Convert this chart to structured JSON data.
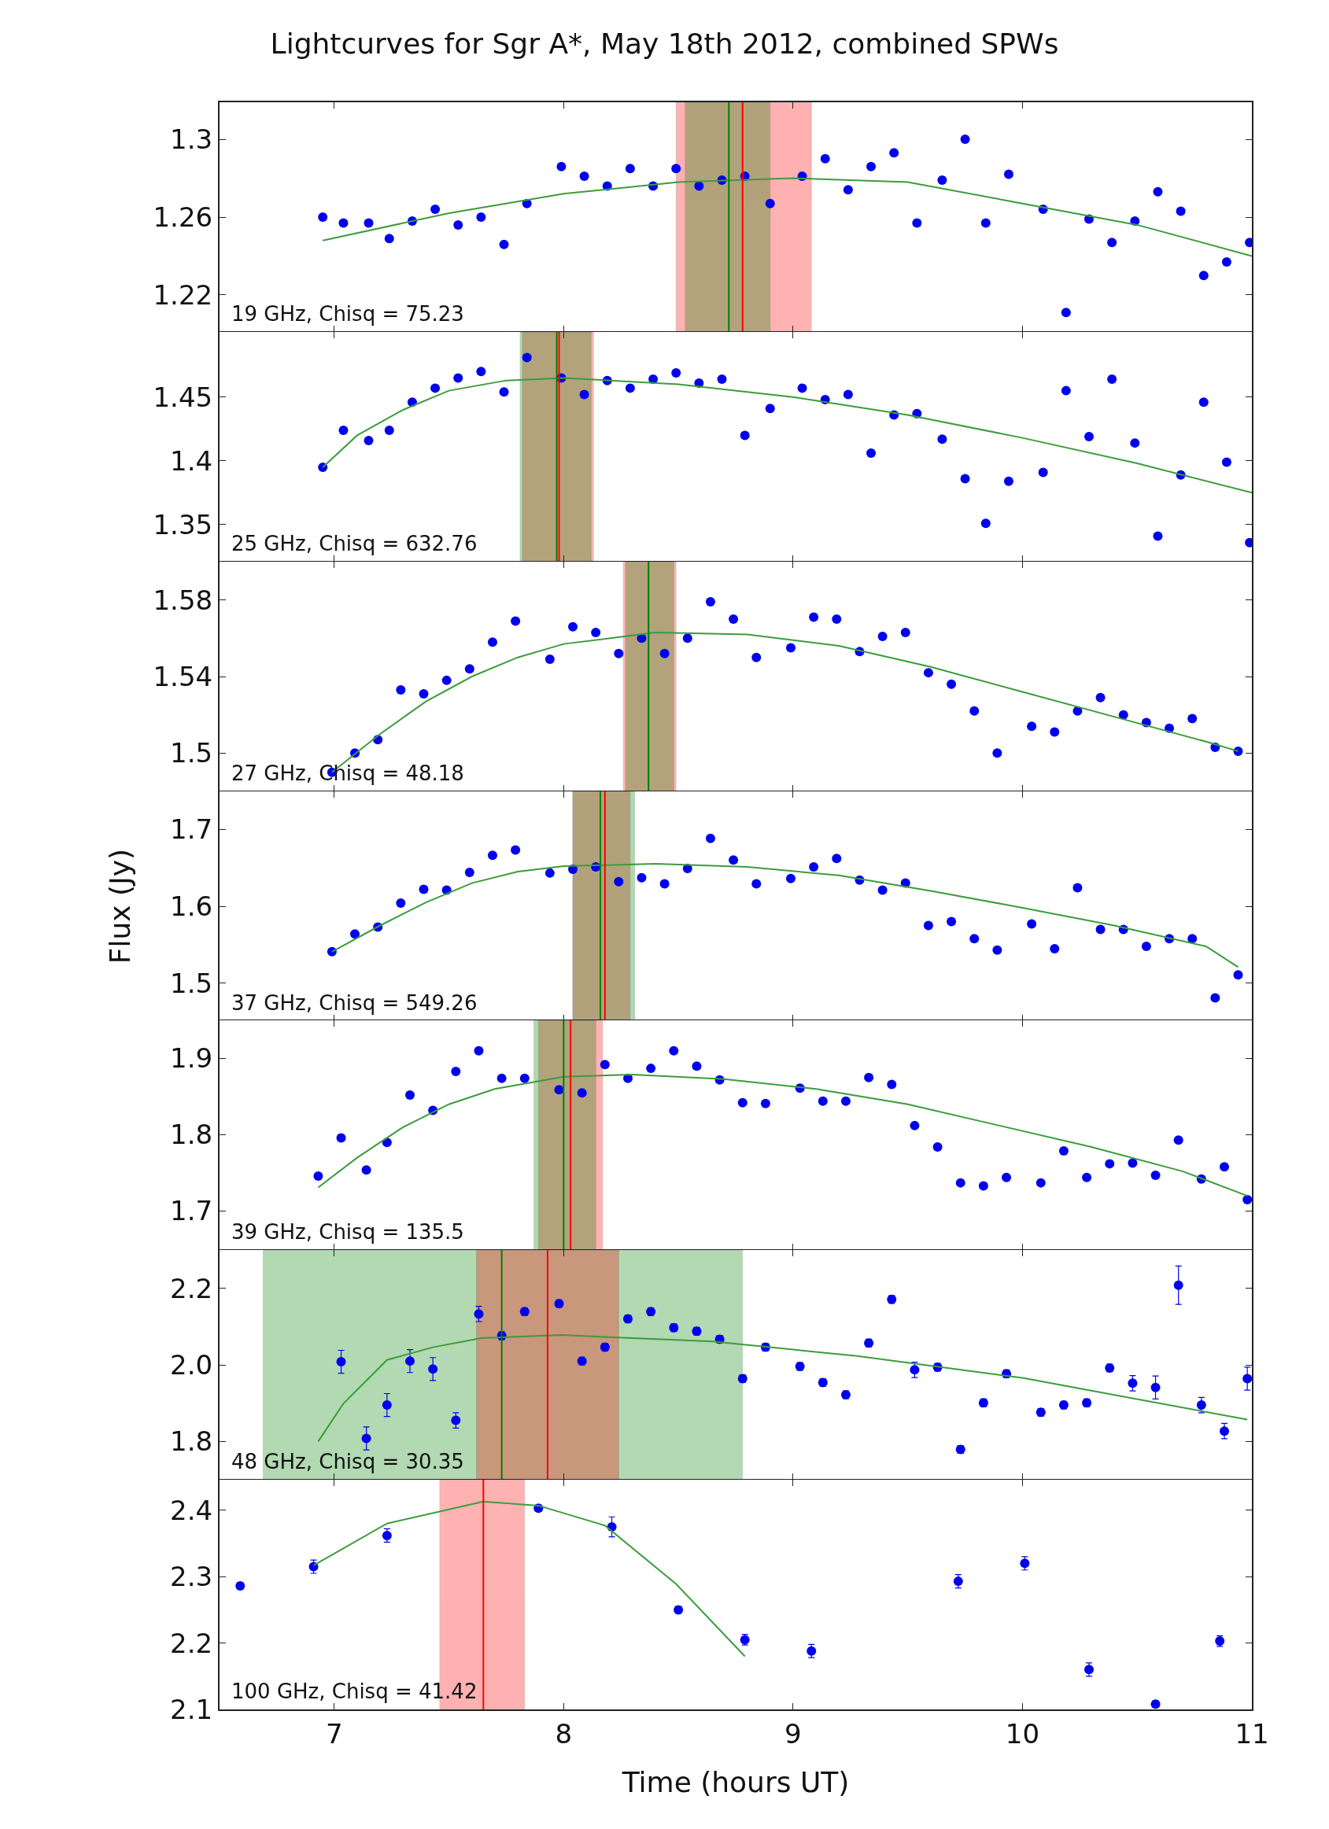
{
  "chart_data": [
    {
      "type": "scatter",
      "title": "Lightcurves for Sgr A*, May 18th 2012, combined SPWs",
      "tick_labels": "y",
      "xlim": [
        6.5,
        11
      ],
      "xticks": [
        7,
        8,
        9,
        10,
        11
      ],
      "ylim": [
        1.201,
        1.319
      ],
      "yticks": [
        1.22,
        1.26,
        1.3
      ],
      "annotations": [
        "19 GHz, Chisq = 75.23"
      ],
      "bands": [
        {
          "axis": "x",
          "from": 8.49,
          "to": 9.08,
          "color": "#ff0000"
        },
        {
          "axis": "x",
          "from": 8.53,
          "to": 8.9,
          "color": "#008000"
        }
      ],
      "ref_lines": [
        {
          "axis": "x",
          "value": 8.72,
          "color": "#008000"
        },
        {
          "axis": "x",
          "value": 8.78,
          "color": "#ff0000"
        }
      ],
      "series": [
        {
          "type": "scatter",
          "color": "#0000ee",
          "x": [
            6.95,
            7.04,
            7.15,
            7.24,
            7.34,
            7.44,
            7.54,
            7.64,
            7.74,
            7.84,
            7.99,
            8.09,
            8.19,
            8.29,
            8.39,
            8.49,
            8.59,
            8.69,
            8.79,
            8.9,
            9.04,
            9.14,
            9.24,
            9.34,
            9.44,
            9.54,
            9.65,
            9.75,
            9.84,
            9.94,
            10.09,
            10.19,
            10.29,
            10.39,
            10.49,
            10.59,
            10.69,
            10.79,
            10.89,
            10.99
          ],
          "values": [
            1.26,
            1.257,
            1.257,
            1.249,
            1.258,
            1.264,
            1.256,
            1.26,
            1.246,
            1.267,
            1.286,
            1.281,
            1.276,
            1.285,
            1.276,
            1.285,
            1.276,
            1.279,
            1.281,
            1.267,
            1.281,
            1.29,
            1.274,
            1.286,
            1.293,
            1.257,
            1.279,
            1.3,
            1.257,
            1.282,
            1.264,
            1.211,
            1.259,
            1.247,
            1.258,
            1.273,
            1.263,
            1.23,
            1.237,
            1.247
          ]
        },
        {
          "type": "line",
          "color": "#3c9c3c",
          "x": [
            6.95,
            7.5,
            8,
            8.5,
            9,
            9.5,
            10,
            10.5,
            11
          ],
          "values": [
            1.248,
            1.262,
            1.272,
            1.278,
            1.28,
            1.278,
            1.267,
            1.256,
            1.24
          ]
        }
      ]
    },
    {
      "type": "scatter",
      "tick_labels": "y",
      "xlim": [
        6.5,
        11
      ],
      "xticks": [
        7,
        8,
        9,
        10,
        11
      ],
      "ylim": [
        1.321,
        1.501
      ],
      "yticks": [
        1.35,
        1.4,
        1.45
      ],
      "annotations": [
        "25 GHz, Chisq = 632.76"
      ],
      "bands": [
        {
          "axis": "x",
          "from": 7.82,
          "to": 8.13,
          "color": "#ff0000"
        },
        {
          "axis": "x",
          "from": 7.81,
          "to": 8.12,
          "color": "#008000"
        }
      ],
      "ref_lines": [
        {
          "axis": "x",
          "value": 7.97,
          "color": "#008000"
        },
        {
          "axis": "x",
          "value": 7.98,
          "color": "#ff0000"
        }
      ],
      "series": [
        {
          "type": "scatter",
          "color": "#0000ee",
          "x": [
            6.95,
            7.04,
            7.15,
            7.24,
            7.34,
            7.44,
            7.54,
            7.64,
            7.74,
            7.84,
            7.99,
            8.09,
            8.19,
            8.29,
            8.39,
            8.49,
            8.59,
            8.69,
            8.79,
            8.9,
            9.04,
            9.14,
            9.24,
            9.34,
            9.44,
            9.54,
            9.65,
            9.75,
            9.84,
            9.94,
            10.09,
            10.19,
            10.29,
            10.39,
            10.49,
            10.59,
            10.69,
            10.79,
            10.89,
            10.99
          ],
          "values": [
            1.395,
            1.424,
            1.416,
            1.424,
            1.446,
            1.457,
            1.465,
            1.47,
            1.454,
            1.481,
            1.465,
            1.452,
            1.463,
            1.457,
            1.464,
            1.469,
            1.461,
            1.464,
            1.42,
            1.441,
            1.457,
            1.448,
            1.452,
            1.406,
            1.436,
            1.437,
            1.417,
            1.386,
            1.351,
            1.384,
            1.391,
            1.455,
            1.419,
            1.464,
            1.414,
            1.341,
            1.389,
            1.446,
            1.399,
            1.336
          ]
        },
        {
          "type": "line",
          "color": "#3c9c3c",
          "x": [
            6.95,
            7.1,
            7.3,
            7.5,
            7.75,
            8,
            8.5,
            9,
            9.5,
            10,
            10.5,
            11
          ],
          "values": [
            1.395,
            1.42,
            1.44,
            1.455,
            1.463,
            1.465,
            1.46,
            1.45,
            1.436,
            1.418,
            1.398,
            1.375
          ]
        }
      ]
    },
    {
      "type": "scatter",
      "tick_labels": "y",
      "xlim": [
        6.5,
        11
      ],
      "xticks": [
        7,
        8,
        9,
        10,
        11
      ],
      "ylim": [
        1.48,
        1.6
      ],
      "yticks": [
        1.5,
        1.54,
        1.58
      ],
      "annotations": [
        "27 GHz, Chisq = 48.18"
      ],
      "bands": [
        {
          "axis": "x",
          "from": 8.26,
          "to": 8.49,
          "color": "#ff0000"
        },
        {
          "axis": "x",
          "from": 8.27,
          "to": 8.48,
          "color": "#008000"
        }
      ],
      "ref_lines": [
        {
          "axis": "x",
          "value": 8.37,
          "color": "#008000"
        }
      ],
      "series": [
        {
          "type": "scatter",
          "color": "#0000ee",
          "x": [
            6.99,
            7.09,
            7.19,
            7.29,
            7.39,
            7.49,
            7.59,
            7.69,
            7.79,
            7.94,
            8.04,
            8.14,
            8.24,
            8.34,
            8.44,
            8.54,
            8.64,
            8.74,
            8.84,
            8.99,
            9.09,
            9.19,
            9.29,
            9.39,
            9.49,
            9.59,
            9.69,
            9.79,
            9.89,
            10.04,
            10.14,
            10.24,
            10.34,
            10.44,
            10.54,
            10.64,
            10.74,
            10.84,
            10.94
          ],
          "values": [
            1.49,
            1.5,
            1.507,
            1.533,
            1.531,
            1.538,
            1.544,
            1.558,
            1.569,
            1.549,
            1.566,
            1.563,
            1.552,
            1.56,
            1.552,
            1.56,
            1.579,
            1.57,
            1.55,
            1.555,
            1.571,
            1.57,
            1.553,
            1.561,
            1.563,
            1.542,
            1.536,
            1.522,
            1.5,
            1.514,
            1.511,
            1.522,
            1.529,
            1.52,
            1.516,
            1.513,
            1.518,
            1.503,
            1.501
          ]
        },
        {
          "type": "line",
          "color": "#3c9c3c",
          "x": [
            6.99,
            7.2,
            7.4,
            7.6,
            7.8,
            8,
            8.4,
            8.8,
            9.2,
            9.6,
            10,
            10.4,
            10.8,
            10.94
          ],
          "values": [
            1.49,
            1.51,
            1.527,
            1.54,
            1.55,
            1.557,
            1.563,
            1.562,
            1.556,
            1.545,
            1.532,
            1.519,
            1.506,
            1.501
          ]
        }
      ]
    },
    {
      "type": "scatter",
      "ylabel": "Flux (Jy)",
      "tick_labels": "y",
      "xlim": [
        6.5,
        11
      ],
      "xticks": [
        7,
        8,
        9,
        10,
        11
      ],
      "ylim": [
        1.451,
        1.749
      ],
      "yticks": [
        1.5,
        1.6,
        1.7
      ],
      "annotations": [
        "37 GHz, Chisq = 549.26"
      ],
      "bands": [
        {
          "axis": "x",
          "from": 8.04,
          "to": 8.29,
          "color": "#ff0000"
        },
        {
          "axis": "x",
          "from": 8.04,
          "to": 8.31,
          "color": "#008000"
        }
      ],
      "ref_lines": [
        {
          "axis": "x",
          "value": 8.16,
          "color": "#008000"
        },
        {
          "axis": "x",
          "value": 8.18,
          "color": "#ff0000"
        }
      ],
      "series": [
        {
          "type": "scatter",
          "color": "#0000ee",
          "x": [
            6.99,
            7.09,
            7.19,
            7.29,
            7.39,
            7.49,
            7.59,
            7.69,
            7.79,
            7.94,
            8.04,
            8.14,
            8.24,
            8.34,
            8.44,
            8.54,
            8.64,
            8.74,
            8.84,
            8.99,
            9.09,
            9.19,
            9.29,
            9.39,
            9.49,
            9.59,
            9.69,
            9.79,
            9.89,
            10.04,
            10.14,
            10.24,
            10.34,
            10.44,
            10.54,
            10.64,
            10.74,
            10.84,
            10.94
          ],
          "values": [
            1.541,
            1.564,
            1.573,
            1.604,
            1.622,
            1.621,
            1.644,
            1.666,
            1.673,
            1.643,
            1.648,
            1.651,
            1.632,
            1.637,
            1.629,
            1.649,
            1.688,
            1.66,
            1.629,
            1.636,
            1.651,
            1.662,
            1.634,
            1.621,
            1.63,
            1.575,
            1.58,
            1.558,
            1.543,
            1.577,
            1.545,
            1.624,
            1.57,
            1.57,
            1.548,
            1.558,
            1.558,
            1.481,
            1.511
          ]
        },
        {
          "type": "line",
          "color": "#3c9c3c",
          "x": [
            6.99,
            7.2,
            7.4,
            7.6,
            7.8,
            8,
            8.4,
            8.8,
            9.2,
            9.6,
            10,
            10.4,
            10.8,
            10.94
          ],
          "values": [
            1.541,
            1.575,
            1.605,
            1.63,
            1.645,
            1.652,
            1.655,
            1.651,
            1.64,
            1.62,
            1.598,
            1.575,
            1.548,
            1.521
          ]
        }
      ]
    },
    {
      "type": "scatter",
      "tick_labels": "y",
      "xlim": [
        6.5,
        11
      ],
      "xticks": [
        7,
        8,
        9,
        10,
        11
      ],
      "ylim": [
        1.649,
        1.95
      ],
      "yticks": [
        1.7,
        1.8,
        1.9
      ],
      "annotations": [
        "39 GHz, Chisq = 135.5"
      ],
      "bands": [
        {
          "axis": "x",
          "from": 7.89,
          "to": 8.17,
          "color": "#ff0000"
        },
        {
          "axis": "x",
          "from": 7.87,
          "to": 8.14,
          "color": "#008000"
        }
      ],
      "ref_lines": [
        {
          "axis": "x",
          "value": 8.0,
          "color": "#008000"
        },
        {
          "axis": "x",
          "value": 8.03,
          "color": "#ff0000"
        }
      ],
      "series": [
        {
          "type": "scatter",
          "color": "#0000ee",
          "x": [
            6.93,
            7.03,
            7.14,
            7.23,
            7.33,
            7.43,
            7.53,
            7.63,
            7.73,
            7.83,
            7.98,
            8.08,
            8.18,
            8.28,
            8.38,
            8.48,
            8.58,
            8.68,
            8.78,
            8.88,
            9.03,
            9.13,
            9.23,
            9.33,
            9.43,
            9.53,
            9.63,
            9.73,
            9.83,
            9.93,
            10.08,
            10.18,
            10.28,
            10.38,
            10.48,
            10.58,
            10.68,
            10.78,
            10.88,
            10.98
          ],
          "values": [
            1.746,
            1.796,
            1.754,
            1.79,
            1.852,
            1.832,
            1.883,
            1.91,
            1.874,
            1.874,
            1.859,
            1.855,
            1.892,
            1.874,
            1.887,
            1.91,
            1.89,
            1.872,
            1.842,
            1.841,
            1.861,
            1.844,
            1.844,
            1.875,
            1.866,
            1.812,
            1.784,
            1.737,
            1.733,
            1.744,
            1.737,
            1.779,
            1.744,
            1.762,
            1.763,
            1.747,
            1.793,
            1.742,
            1.758,
            1.715
          ]
        },
        {
          "type": "line",
          "color": "#3c9c3c",
          "x": [
            6.93,
            7.1,
            7.3,
            7.5,
            7.7,
            8,
            8.3,
            8.7,
            9.1,
            9.5,
            9.9,
            10.3,
            10.7,
            10.98
          ],
          "values": [
            1.731,
            1.77,
            1.81,
            1.84,
            1.86,
            1.876,
            1.879,
            1.873,
            1.86,
            1.84,
            1.812,
            1.784,
            1.752,
            1.72
          ]
        }
      ]
    },
    {
      "type": "scatter",
      "tick_labels": "y",
      "xlim": [
        6.5,
        11
      ],
      "xticks": [
        7,
        8,
        9,
        10,
        11
      ],
      "ylim": [
        1.7,
        2.3
      ],
      "yticks": [
        1.8,
        {
          "value": 2,
          "label": "2.0"
        },
        2.2
      ],
      "annotations": [
        "48 GHz, Chisq = 30.35"
      ],
      "bands": [
        {
          "axis": "x",
          "from": 6.69,
          "to": 8.78,
          "color": "#008000"
        },
        {
          "axis": "x",
          "from": 7.62,
          "to": 8.24,
          "color": "#ff0000"
        }
      ],
      "ref_lines": [
        {
          "axis": "x",
          "value": 7.73,
          "color": "#008000"
        },
        {
          "axis": "x",
          "value": 7.93,
          "color": "#ff0000"
        }
      ],
      "series": [
        {
          "type": "scatter",
          "color": "#0000ee",
          "x": [
            7.03,
            7.14,
            7.23,
            7.33,
            7.43,
            7.53,
            7.63,
            7.73,
            7.83,
            7.98,
            8.08,
            8.18,
            8.28,
            8.38,
            8.48,
            8.58,
            8.68,
            8.78,
            8.88,
            9.03,
            9.13,
            9.23,
            9.33,
            9.43,
            9.53,
            9.63,
            9.73,
            9.83,
            9.93,
            10.08,
            10.18,
            10.28,
            10.38,
            10.48,
            10.58,
            10.68,
            10.78,
            10.88,
            10.98
          ],
          "values": [
            2.008,
            1.808,
            1.895,
            2.01,
            1.989,
            1.855,
            2.133,
            2.076,
            2.139,
            2.16,
            2.01,
            2.046,
            2.12,
            2.139,
            2.097,
            2.088,
            2.067,
            1.964,
            2.046,
            1.996,
            1.954,
            1.922,
            2.057,
            2.171,
            1.987,
            1.994,
            1.779,
            1.901,
            1.977,
            1.876,
            1.895,
            1.901,
            1.992,
            1.952,
            1.941,
            2.208,
            1.895,
            1.827,
            1.964
          ],
          "errors": [
            0.03,
            0.03,
            0.03,
            0.03,
            0.03,
            0.02,
            0.02,
            0.01,
            0.01,
            0.01,
            0.01,
            0.01,
            0.01,
            0.01,
            0.01,
            0.01,
            0.01,
            0.01,
            0.01,
            0.01,
            0.01,
            0.01,
            0.01,
            0.01,
            0.02,
            0.01,
            0.01,
            0.01,
            0.01,
            0.01,
            0.01,
            0.01,
            0.01,
            0.02,
            0.03,
            0.05,
            0.02,
            0.02,
            0.03
          ]
        },
        {
          "type": "line",
          "color": "#3c9c3c",
          "x": [
            6.93,
            7.04,
            7.23,
            7.43,
            7.64,
            7.99,
            8.65,
            9.28,
            10,
            10.98
          ],
          "values": [
            1.8,
            1.899,
            2.013,
            2.046,
            2.07,
            2.078,
            2.061,
            2.023,
            1.966,
            1.857
          ]
        }
      ]
    },
    {
      "type": "scatter",
      "xlabel": "Time (hours UT)",
      "xlim": [
        6.5,
        11
      ],
      "xticks": [
        7,
        8,
        9,
        10,
        11
      ],
      "ylim": [
        2.1,
        2.446
      ],
      "yticks": [
        2.1,
        2.2,
        2.3,
        2.4
      ],
      "annotations": [
        "100 GHz, Chisq = 41.42"
      ],
      "bands": [
        {
          "axis": "x",
          "from": 7.46,
          "to": 7.83,
          "color": "#ff0000"
        }
      ],
      "ref_lines": [
        {
          "axis": "x",
          "value": 7.65,
          "color": "#ff0000"
        }
      ],
      "series": [
        {
          "type": "scatter",
          "color": "#0000ee",
          "x": [
            6.59,
            6.91,
            7.23,
            7.89,
            8.21,
            8.5,
            8.79,
            9.08,
            9.72,
            10.01,
            10.29,
            10.58,
            10.86
          ],
          "values": [
            2.286,
            2.315,
            2.362,
            2.403,
            2.375,
            2.25,
            2.205,
            2.188,
            2.293,
            2.32,
            2.16,
            2.108,
            2.203
          ],
          "errors": [
            0.005,
            0.01,
            0.01,
            0.005,
            0.015,
            0.005,
            0.008,
            0.01,
            0.01,
            0.01,
            0.01,
            0.005,
            0.008
          ]
        },
        {
          "type": "line",
          "color": "#3c9c3c",
          "x": [
            6.91,
            7.23,
            7.65,
            7.89,
            8.18,
            8.49,
            8.79
          ],
          "values": [
            2.317,
            2.38,
            2.413,
            2.407,
            2.377,
            2.289,
            2.18
          ]
        }
      ]
    }
  ]
}
